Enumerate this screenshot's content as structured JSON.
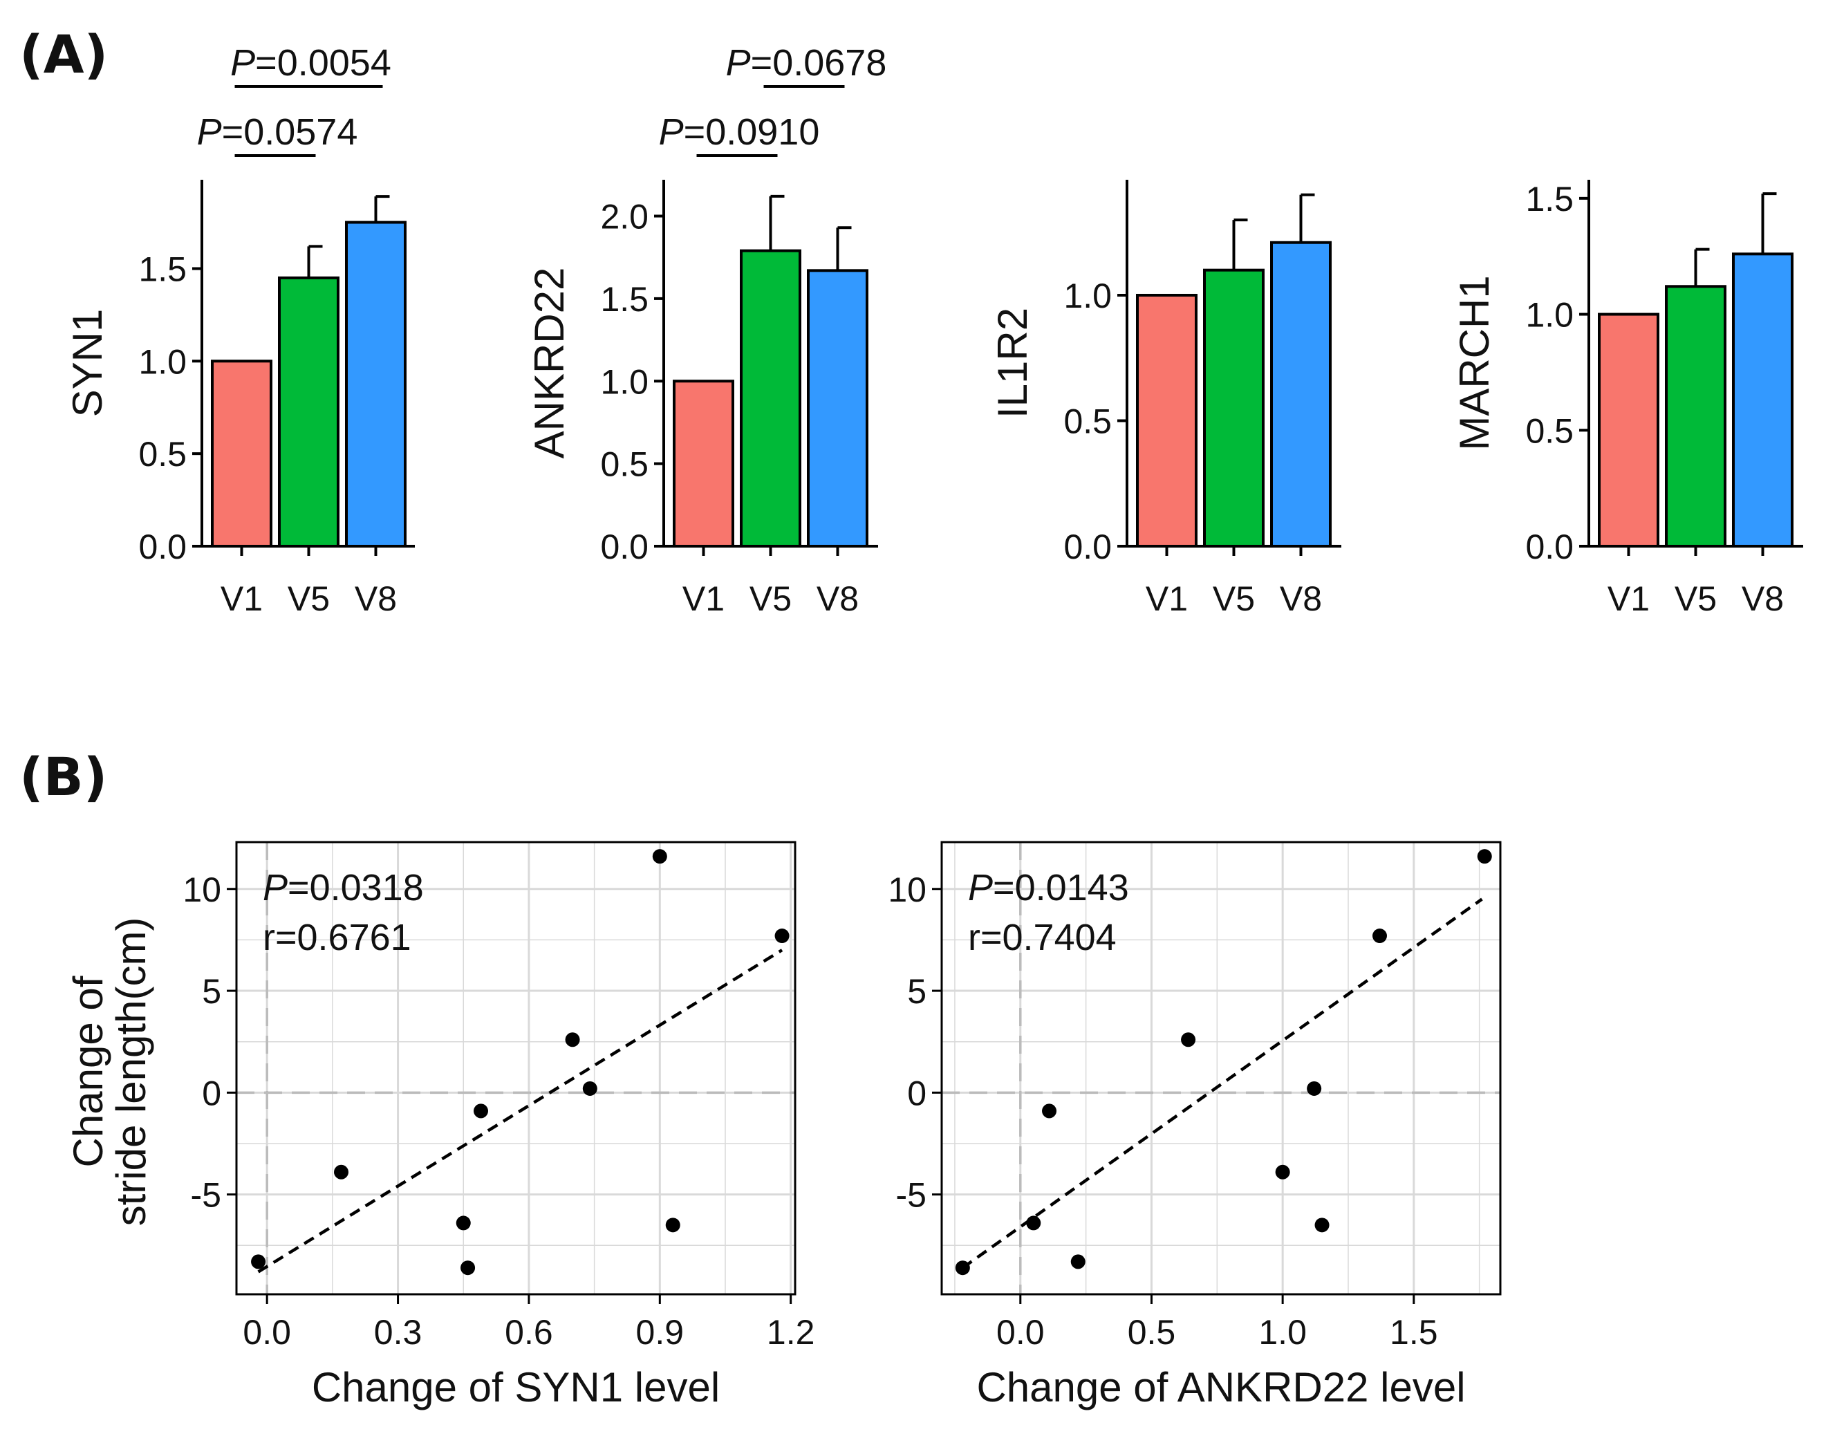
{
  "panels": [
    {
      "letter": "(A)"
    },
    {
      "letter": "(B)"
    }
  ],
  "colors": {
    "V1": "#F8766D",
    "V5": "#00BA38",
    "V8": "#3399FF",
    "axis": "#000000",
    "grid": "#D9D9D9",
    "refline": "#BBBBBB",
    "points": "#000000"
  },
  "chart_data": [
    {
      "type": "bar",
      "panel": "A",
      "ylabel": "SYN1",
      "categories": [
        "V1",
        "V5",
        "V8"
      ],
      "values": [
        1.0,
        1.45,
        1.75
      ],
      "errors": [
        0.0,
        0.17,
        0.14
      ],
      "ylim": [
        0,
        1.98
      ],
      "yticks": [
        0.0,
        0.5,
        1.0,
        1.5
      ],
      "ytick_labels": [
        "0.0",
        "0.5",
        "1.0",
        "1.5"
      ],
      "comparisons": [
        {
          "from": "V1",
          "to": "V8",
          "label_prefix": "P",
          "label_value": "=0.0054"
        },
        {
          "from": "V1",
          "to": "V5",
          "label_prefix": "P",
          "label_value": "=0.0574"
        }
      ]
    },
    {
      "type": "bar",
      "panel": "A",
      "ylabel": "ANKRD22",
      "categories": [
        "V1",
        "V5",
        "V8"
      ],
      "values": [
        1.0,
        1.79,
        1.67
      ],
      "errors": [
        0.0,
        0.33,
        0.26
      ],
      "ylim": [
        0,
        2.22
      ],
      "yticks": [
        0.0,
        0.5,
        1.0,
        1.5,
        2.0
      ],
      "ytick_labels": [
        "0.0",
        "0.5",
        "1.0",
        "1.5",
        "2.0"
      ],
      "comparisons": [
        {
          "from": "V5",
          "to": "V8",
          "label_prefix": "P",
          "label_value": "=0.0678"
        },
        {
          "from": "V1",
          "to": "V5",
          "label_prefix": "P",
          "label_value": "=0.0910"
        }
      ]
    },
    {
      "type": "bar",
      "panel": "A",
      "ylabel": "IL1R2",
      "categories": [
        "V1",
        "V5",
        "V8"
      ],
      "values": [
        1.0,
        1.1,
        1.21
      ],
      "errors": [
        0.0,
        0.2,
        0.19
      ],
      "ylim": [
        0,
        1.46
      ],
      "yticks": [
        0.0,
        0.5,
        1.0
      ],
      "ytick_labels": [
        "0.0",
        "0.5",
        "1.0"
      ],
      "comparisons": []
    },
    {
      "type": "bar",
      "panel": "A",
      "ylabel": "MARCH1",
      "categories": [
        "V1",
        "V5",
        "V8"
      ],
      "values": [
        1.0,
        1.12,
        1.26
      ],
      "errors": [
        0.0,
        0.16,
        0.26
      ],
      "ylim": [
        0,
        1.58
      ],
      "yticks": [
        0.0,
        0.5,
        1.0,
        1.5
      ],
      "ytick_labels": [
        "0.0",
        "0.5",
        "1.0",
        "1.5"
      ],
      "comparisons": []
    },
    {
      "type": "scatter",
      "panel": "B",
      "xlabel": "Change of SYN1 level",
      "ylabel_lines": [
        "Change of",
        "stride length(cm)"
      ],
      "stat_p_prefix": "P",
      "stat_p_value": "=0.0318",
      "stat_r": "r=0.6761",
      "xlim": [
        -0.07,
        1.21
      ],
      "ylim": [
        -9.9,
        12.3
      ],
      "xticks": [
        0.0,
        0.3,
        0.6,
        0.9,
        1.2
      ],
      "xtick_labels": [
        "0.0",
        "0.3",
        "0.6",
        "0.9",
        "1.2"
      ],
      "yticks": [
        -5,
        0,
        5,
        10
      ],
      "ytick_labels": [
        "-5",
        "0",
        "5",
        "10"
      ],
      "points": [
        {
          "x": -0.02,
          "y": -8.3
        },
        {
          "x": 0.17,
          "y": -3.9
        },
        {
          "x": 0.45,
          "y": -6.4
        },
        {
          "x": 0.46,
          "y": -8.6
        },
        {
          "x": 0.49,
          "y": -0.9
        },
        {
          "x": 0.7,
          "y": 2.6
        },
        {
          "x": 0.74,
          "y": 0.2
        },
        {
          "x": 0.9,
          "y": 11.6
        },
        {
          "x": 0.93,
          "y": -6.5
        },
        {
          "x": 1.18,
          "y": 7.7
        }
      ],
      "fit_line": [
        {
          "x": -0.02,
          "y": -8.8
        },
        {
          "x": 1.18,
          "y": 7.0
        }
      ]
    },
    {
      "type": "scatter",
      "panel": "B",
      "xlabel": "Change of ANKRD22 level",
      "stat_p_prefix": "P",
      "stat_p_value": "=0.0143",
      "stat_r": "r=0.7404",
      "xlim": [
        -0.3,
        1.83
      ],
      "ylim": [
        -9.9,
        12.3
      ],
      "xticks": [
        0.0,
        0.5,
        1.0,
        1.5
      ],
      "xtick_labels": [
        "0.0",
        "0.5",
        "1.0",
        "1.5"
      ],
      "yticks": [
        -5,
        0,
        5,
        10
      ],
      "ytick_labels": [
        "-5",
        "0",
        "5",
        "10"
      ],
      "points": [
        {
          "x": -0.22,
          "y": -8.6
        },
        {
          "x": 0.05,
          "y": -6.4
        },
        {
          "x": 0.11,
          "y": -0.9
        },
        {
          "x": 0.22,
          "y": -8.3
        },
        {
          "x": 0.64,
          "y": 2.6
        },
        {
          "x": 1.0,
          "y": -3.9
        },
        {
          "x": 1.12,
          "y": 0.2
        },
        {
          "x": 1.15,
          "y": -6.5
        },
        {
          "x": 1.37,
          "y": 7.7
        },
        {
          "x": 1.77,
          "y": 11.6
        }
      ],
      "fit_line": [
        {
          "x": -0.22,
          "y": -8.6
        },
        {
          "x": 1.76,
          "y": 9.5
        }
      ]
    }
  ]
}
